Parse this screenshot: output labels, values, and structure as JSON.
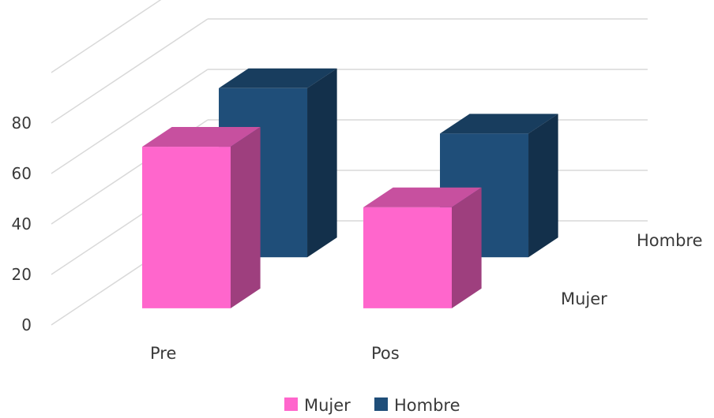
{
  "chart_data": {
    "type": "bar",
    "title": "",
    "xlabel": "",
    "ylabel": "",
    "categories": [
      "Pre",
      "Pos"
    ],
    "series": [
      {
        "name": "Mujer",
        "values": [
          64,
          40
        ],
        "color": "#ff66cc"
      },
      {
        "name": "Hombre",
        "values": [
          67,
          49
        ],
        "color": "#1f4e79"
      }
    ],
    "yticks": [
      "0",
      "20",
      "40",
      "60",
      "80"
    ],
    "ylim": [
      0,
      100
    ],
    "grid": true,
    "legend": "bottom",
    "depth_labels": [
      "Mujer",
      "Hombre"
    ]
  }
}
